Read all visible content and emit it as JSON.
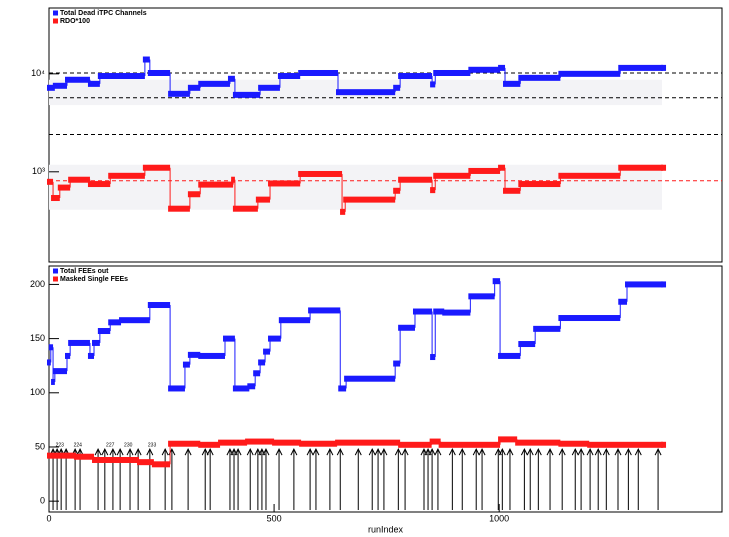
{
  "chart_data": [
    {
      "type": "step",
      "ylog": true,
      "xlim": [
        0,
        1495
      ],
      "ylim": [
        120,
        47000
      ],
      "yticks": [
        {
          "value": 1000,
          "label": "10³"
        },
        {
          "value": 10000,
          "label": "10⁴"
        }
      ],
      "series": [
        {
          "name": "Total Dead iTPC Channels",
          "color": "#1a1aff",
          "x": [
            0,
            13,
            40,
            91,
            113,
            213,
            224,
            269,
            313,
            336,
            402,
            413,
            469,
            513,
            558,
            642,
            769,
            780,
            851,
            858,
            936,
            1002,
            1013,
            1047,
            1136,
            1269,
            1364
          ],
          "values": [
            7200,
            7550,
            8700,
            7900,
            9500,
            14000,
            10200,
            6250,
            7200,
            7900,
            8900,
            6100,
            7200,
            9500,
            10200,
            6500,
            7200,
            9500,
            7800,
            10200,
            11000,
            11500,
            7900,
            9100,
            10000,
            11500,
            11500
          ]
        },
        {
          "name": "RDO*100",
          "color": "#ff1a1a",
          "x": [
            0,
            9,
            24,
            47,
            91,
            136,
            213,
            269,
            313,
            336,
            409,
            413,
            464,
            491,
            558,
            651,
            658,
            769,
            780,
            851,
            858,
            936,
            1002,
            1013,
            1047,
            1136,
            1269,
            1364
          ],
          "values": [
            790,
            540,
            690,
            830,
            750,
            910,
            1100,
            420,
            590,
            740,
            830,
            420,
            520,
            760,
            950,
            390,
            520,
            640,
            830,
            650,
            910,
            1020,
            1100,
            640,
            750,
            910,
            1100,
            1100
          ]
        }
      ],
      "hlines": [
        {
          "value": 10200,
          "color": "#000000"
        },
        {
          "value": 5700,
          "color": "#000000"
        },
        {
          "value": 2400,
          "color": "#000000"
        },
        {
          "value": 810,
          "color": "#ff1a1a"
        }
      ],
      "bands": [
        {
          "from": 4800,
          "to": 8700
        },
        {
          "from": 410,
          "to": 1180
        }
      ]
    },
    {
      "type": "step",
      "ylog": false,
      "xlim": [
        0,
        1495
      ],
      "ylim": [
        -10,
        217
      ],
      "yticks": [
        0,
        50,
        100,
        150,
        200
      ],
      "xticks": [
        0,
        500,
        1000
      ],
      "xlabel": "runIndex",
      "series": [
        {
          "name": "Total FEEs out",
          "color": "#1a1aff",
          "x": [
            0,
            4,
            9,
            13,
            40,
            47,
            91,
            100,
            113,
            136,
            160,
            224,
            269,
            302,
            313,
            336,
            391,
            413,
            445,
            458,
            469,
            480,
            491,
            515,
            580,
            647,
            660,
            769,
            780,
            813,
            851,
            858,
            878,
            936,
            990,
            1002,
            1047,
            1080,
            1136,
            1269,
            1284,
            1364
          ],
          "values": [
            128,
            142,
            110,
            120,
            134,
            146,
            134,
            146,
            157,
            165,
            167,
            181,
            104,
            126,
            135,
            134,
            150,
            104,
            106,
            118,
            128,
            138,
            150,
            167,
            176,
            104,
            113,
            127,
            160,
            175,
            133,
            175,
            174,
            189,
            203,
            134,
            145,
            159,
            169,
            184,
            200,
            200
          ]
        },
        {
          "name": "Masked Single FEEs",
          "color": "#ff1a1a",
          "x": [
            0,
            60,
            100,
            200,
            233,
            269,
            336,
            380,
            440,
            500,
            560,
            640,
            780,
            850,
            870,
            1002,
            1040,
            1136,
            1200,
            1364
          ],
          "values": [
            42,
            41,
            38,
            36,
            34,
            53,
            52,
            54,
            55,
            54,
            53,
            54,
            52,
            55,
            52,
            57,
            54,
            53,
            52,
            52
          ]
        }
      ],
      "arrows": {
        "top": 48,
        "x": [
          9,
          18,
          27,
          38,
          58,
          69,
          109,
          124,
          142,
          158,
          180,
          198,
          224,
          258,
          273,
          309,
          347,
          358,
          402,
          411,
          420,
          447,
          464,
          473,
          482,
          511,
          544,
          580,
          593,
          624,
          647,
          687,
          718,
          731,
          744,
          776,
          791,
          833,
          842,
          851,
          864,
          896,
          918,
          949,
          962,
          998,
          1007,
          1024,
          1056,
          1069,
          1087,
          1113,
          1140,
          1169,
          1182,
          1202,
          1220,
          1238,
          1264,
          1287,
          1309,
          1353
        ],
        "labels": [
          {
            "x": 24,
            "label": "223"
          },
          {
            "x": 64,
            "label": "224"
          },
          {
            "x": 136,
            "label": "227"
          },
          {
            "x": 176,
            "label": "230"
          },
          {
            "x": 229,
            "label": "233"
          }
        ]
      }
    }
  ]
}
